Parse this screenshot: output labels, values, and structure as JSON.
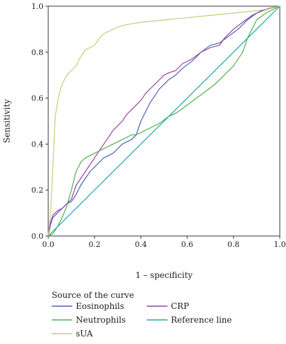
{
  "chart_data": {
    "type": "line",
    "title": "",
    "xlabel": "1 – specificity",
    "ylabel": "Sensitivity",
    "xlim": [
      0,
      1
    ],
    "ylim": [
      0,
      1
    ],
    "xticks": [
      "0.0",
      "0.2",
      "0.4",
      "0.6",
      "0.8",
      "1.0"
    ],
    "yticks": [
      "0.0",
      "0.2",
      "0.4",
      "0.6",
      "0.8",
      "1.0"
    ],
    "grid": false,
    "legend_title": "Source of the curve",
    "legend_position": "bottom",
    "series": [
      {
        "name": "Eosinophils",
        "color": "#4a5fb5",
        "points": [
          [
            0,
            0
          ],
          [
            0.01,
            0.05
          ],
          [
            0.02,
            0.08
          ],
          [
            0.04,
            0.1
          ],
          [
            0.06,
            0.12
          ],
          [
            0.08,
            0.14
          ],
          [
            0.1,
            0.15
          ],
          [
            0.12,
            0.18
          ],
          [
            0.14,
            0.22
          ],
          [
            0.16,
            0.25
          ],
          [
            0.18,
            0.28
          ],
          [
            0.2,
            0.3
          ],
          [
            0.22,
            0.32
          ],
          [
            0.24,
            0.34
          ],
          [
            0.26,
            0.35
          ],
          [
            0.28,
            0.36
          ],
          [
            0.3,
            0.38
          ],
          [
            0.32,
            0.4
          ],
          [
            0.34,
            0.41
          ],
          [
            0.36,
            0.42
          ],
          [
            0.38,
            0.44
          ],
          [
            0.4,
            0.5
          ],
          [
            0.42,
            0.54
          ],
          [
            0.44,
            0.58
          ],
          [
            0.46,
            0.61
          ],
          [
            0.48,
            0.64
          ],
          [
            0.5,
            0.66
          ],
          [
            0.52,
            0.68
          ],
          [
            0.55,
            0.7
          ],
          [
            0.58,
            0.73
          ],
          [
            0.62,
            0.76
          ],
          [
            0.66,
            0.8
          ],
          [
            0.7,
            0.83
          ],
          [
            0.74,
            0.84
          ],
          [
            0.78,
            0.87
          ],
          [
            0.82,
            0.9
          ],
          [
            0.86,
            0.94
          ],
          [
            0.9,
            0.97
          ],
          [
            0.95,
            0.99
          ],
          [
            1,
            1
          ]
        ]
      },
      {
        "name": "CRP",
        "color": "#9a3fa8",
        "points": [
          [
            0,
            0
          ],
          [
            0.01,
            0.06
          ],
          [
            0.02,
            0.09
          ],
          [
            0.04,
            0.11
          ],
          [
            0.06,
            0.12
          ],
          [
            0.08,
            0.14
          ],
          [
            0.1,
            0.16
          ],
          [
            0.12,
            0.22
          ],
          [
            0.14,
            0.25
          ],
          [
            0.16,
            0.28
          ],
          [
            0.18,
            0.31
          ],
          [
            0.2,
            0.34
          ],
          [
            0.22,
            0.37
          ],
          [
            0.24,
            0.4
          ],
          [
            0.26,
            0.43
          ],
          [
            0.28,
            0.46
          ],
          [
            0.3,
            0.48
          ],
          [
            0.32,
            0.5
          ],
          [
            0.34,
            0.53
          ],
          [
            0.36,
            0.55
          ],
          [
            0.38,
            0.57
          ],
          [
            0.4,
            0.59
          ],
          [
            0.42,
            0.62
          ],
          [
            0.44,
            0.64
          ],
          [
            0.46,
            0.66
          ],
          [
            0.48,
            0.68
          ],
          [
            0.5,
            0.7
          ],
          [
            0.52,
            0.71
          ],
          [
            0.55,
            0.72
          ],
          [
            0.58,
            0.75
          ],
          [
            0.62,
            0.77
          ],
          [
            0.66,
            0.8
          ],
          [
            0.7,
            0.82
          ],
          [
            0.74,
            0.83
          ],
          [
            0.76,
            0.86
          ],
          [
            0.8,
            0.9
          ],
          [
            0.84,
            0.93
          ],
          [
            0.88,
            0.96
          ],
          [
            0.92,
            0.98
          ],
          [
            0.96,
            0.99
          ],
          [
            1,
            1
          ]
        ]
      },
      {
        "name": "Neutrophils",
        "color": "#4cb04a",
        "points": [
          [
            0,
            0
          ],
          [
            0.02,
            0.01
          ],
          [
            0.04,
            0.04
          ],
          [
            0.06,
            0.08
          ],
          [
            0.08,
            0.13
          ],
          [
            0.1,
            0.2
          ],
          [
            0.12,
            0.28
          ],
          [
            0.14,
            0.32
          ],
          [
            0.16,
            0.34
          ],
          [
            0.18,
            0.35
          ],
          [
            0.2,
            0.36
          ],
          [
            0.22,
            0.37
          ],
          [
            0.24,
            0.38
          ],
          [
            0.26,
            0.39
          ],
          [
            0.28,
            0.4
          ],
          [
            0.3,
            0.41
          ],
          [
            0.32,
            0.42
          ],
          [
            0.34,
            0.43
          ],
          [
            0.36,
            0.44
          ],
          [
            0.38,
            0.44
          ],
          [
            0.4,
            0.45
          ],
          [
            0.44,
            0.47
          ],
          [
            0.48,
            0.49
          ],
          [
            0.52,
            0.52
          ],
          [
            0.56,
            0.54
          ],
          [
            0.6,
            0.57
          ],
          [
            0.64,
            0.6
          ],
          [
            0.68,
            0.63
          ],
          [
            0.72,
            0.66
          ],
          [
            0.76,
            0.7
          ],
          [
            0.8,
            0.74
          ],
          [
            0.84,
            0.8
          ],
          [
            0.86,
            0.86
          ],
          [
            0.88,
            0.9
          ],
          [
            0.9,
            0.94
          ],
          [
            0.94,
            0.97
          ],
          [
            1,
            1
          ]
        ]
      },
      {
        "name": "Reference line",
        "color": "#1aa7a7",
        "points": [
          [
            0,
            0
          ],
          [
            1,
            1
          ]
        ]
      },
      {
        "name": "sUA",
        "color": "#c9c97a",
        "points": [
          [
            0,
            0
          ],
          [
            0.01,
            0.1
          ],
          [
            0.02,
            0.3
          ],
          [
            0.03,
            0.52
          ],
          [
            0.04,
            0.58
          ],
          [
            0.05,
            0.63
          ],
          [
            0.06,
            0.66
          ],
          [
            0.07,
            0.68
          ],
          [
            0.08,
            0.7
          ],
          [
            0.1,
            0.72
          ],
          [
            0.12,
            0.74
          ],
          [
            0.14,
            0.78
          ],
          [
            0.16,
            0.81
          ],
          [
            0.18,
            0.82
          ],
          [
            0.2,
            0.83
          ],
          [
            0.22,
            0.86
          ],
          [
            0.24,
            0.88
          ],
          [
            0.26,
            0.89
          ],
          [
            0.28,
            0.9
          ],
          [
            0.3,
            0.91
          ],
          [
            0.34,
            0.92
          ],
          [
            0.4,
            0.93
          ],
          [
            0.5,
            0.94
          ],
          [
            0.6,
            0.95
          ],
          [
            0.7,
            0.96
          ],
          [
            0.8,
            0.97
          ],
          [
            0.9,
            0.98
          ],
          [
            0.96,
            0.99
          ],
          [
            1,
            1
          ]
        ]
      }
    ]
  }
}
